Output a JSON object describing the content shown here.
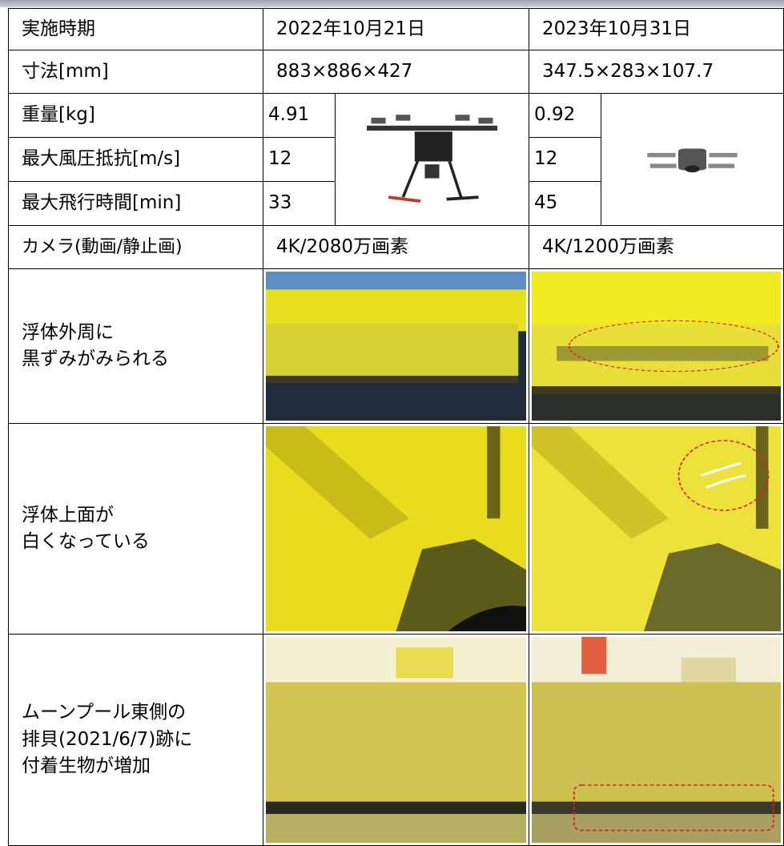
{
  "table": {
    "rows": [
      [
        "実施時期",
        "2022年10月21日",
        "2023年10月31日"
      ],
      [
        "寸法[mm]",
        "883×886×427",
        "347.5×283×107.7"
      ],
      [
        "重量[kg]",
        "4.91",
        "0.92"
      ],
      [
        "最大風圧抵抗[m/s]",
        "12",
        "12"
      ],
      [
        "最大飛行時間[min]",
        "33",
        "45"
      ],
      [
        "カメラ(動画/静止画)",
        "4K/2080万画素",
        "4K/1200万画素"
      ],
      [
        "浮体外周に\n黒ずみがみられる"
      ],
      [
        "浮体上面が\n白くなっている"
      ],
      [
        "ムーンプール東側の\n排貝(2021/6/7)跡に\n付着生物が増加"
      ]
    ]
  }
}
